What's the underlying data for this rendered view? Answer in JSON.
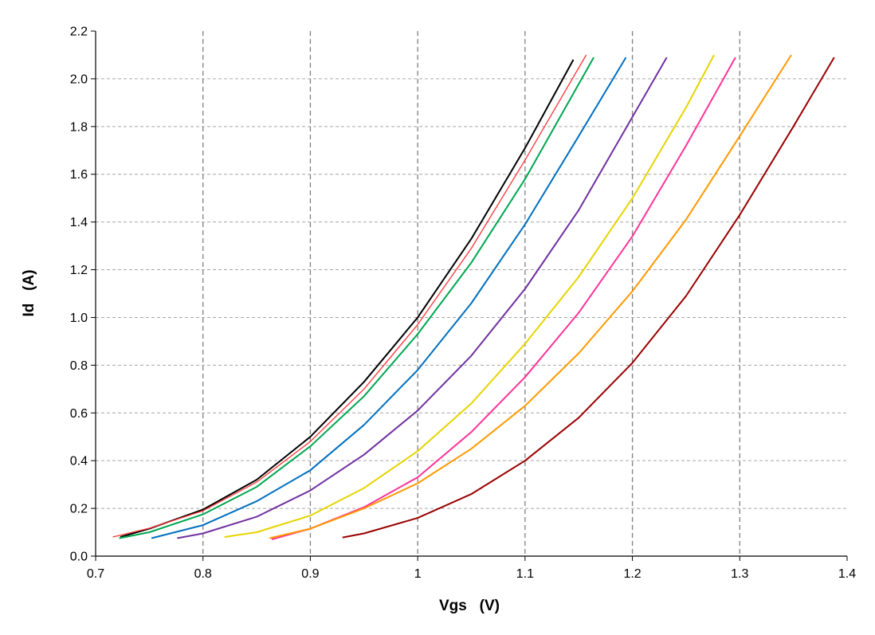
{
  "chart_data": {
    "type": "line",
    "title": "",
    "xlabel": "Vgs   (V)",
    "ylabel": "Id   (A)",
    "xlim": [
      0.7,
      1.4
    ],
    "ylim": [
      0.0,
      2.2
    ],
    "x_ticks": [
      0.7,
      0.8,
      0.9,
      1.0,
      1.1,
      1.2,
      1.3,
      1.4
    ],
    "x_tick_labels": [
      "0.7",
      "0.8",
      "0.9",
      "1",
      "1.1",
      "1.2",
      "1.3",
      "1.4"
    ],
    "y_ticks": [
      0.0,
      0.2,
      0.4,
      0.6,
      0.8,
      1.0,
      1.2,
      1.4,
      1.6,
      1.8,
      2.0,
      2.2
    ],
    "y_tick_labels": [
      "0.0",
      "0.2",
      "0.4",
      "0.6",
      "0.8",
      "1.0",
      "1.2",
      "1.4",
      "1.6",
      "1.8",
      "2.0",
      "2.2"
    ],
    "vertical_grid": "dashed, major x ticks 0.8–1.3",
    "horizontal_grid": "dashed, major y ticks",
    "legend": "none",
    "series": [
      {
        "color": "#000000",
        "x": [
          0.723,
          0.75,
          0.8,
          0.85,
          0.9,
          0.95,
          1.0,
          1.05,
          1.1,
          1.145
        ],
        "y": [
          0.08,
          0.115,
          0.195,
          0.32,
          0.5,
          0.73,
          1.0,
          1.33,
          1.71,
          2.08
        ]
      },
      {
        "color": "#ff3333",
        "x": [
          0.716,
          0.75,
          0.8,
          0.85,
          0.9,
          0.95,
          1.0,
          1.05,
          1.1,
          1.157
        ],
        "y": [
          0.08,
          0.117,
          0.19,
          0.31,
          0.48,
          0.7,
          0.97,
          1.29,
          1.66,
          2.1
        ]
      },
      {
        "color": "#00a650",
        "x": [
          0.722,
          0.75,
          0.8,
          0.85,
          0.9,
          0.95,
          1.0,
          1.05,
          1.1,
          1.164
        ],
        "y": [
          0.075,
          0.1,
          0.175,
          0.29,
          0.46,
          0.67,
          0.93,
          1.23,
          1.58,
          2.09
        ]
      },
      {
        "color": "#0070c0",
        "x": [
          0.752,
          0.8,
          0.85,
          0.9,
          0.95,
          1.0,
          1.05,
          1.1,
          1.15,
          1.194
        ],
        "y": [
          0.075,
          0.13,
          0.23,
          0.36,
          0.55,
          0.78,
          1.06,
          1.39,
          1.76,
          2.09
        ]
      },
      {
        "color": "#7030a0",
        "x": [
          0.776,
          0.8,
          0.85,
          0.9,
          0.95,
          1.0,
          1.05,
          1.1,
          1.15,
          1.2,
          1.232
        ],
        "y": [
          0.075,
          0.095,
          0.165,
          0.275,
          0.425,
          0.61,
          0.84,
          1.12,
          1.45,
          1.84,
          2.09
        ]
      },
      {
        "color": "#e6d400",
        "x": [
          0.82,
          0.85,
          0.9,
          0.95,
          1.0,
          1.05,
          1.1,
          1.15,
          1.2,
          1.25,
          1.276
        ],
        "y": [
          0.08,
          0.1,
          0.17,
          0.285,
          0.44,
          0.64,
          0.89,
          1.17,
          1.5,
          1.88,
          2.1
        ]
      },
      {
        "color": "#ff3399",
        "x": [
          0.864,
          0.9,
          0.95,
          1.0,
          1.05,
          1.1,
          1.15,
          1.2,
          1.25,
          1.296
        ],
        "y": [
          0.07,
          0.115,
          0.205,
          0.33,
          0.52,
          0.75,
          1.02,
          1.34,
          1.72,
          2.09
        ]
      },
      {
        "color": "#ff9900",
        "x": [
          0.862,
          0.9,
          0.95,
          1.0,
          1.05,
          1.1,
          1.15,
          1.2,
          1.25,
          1.3,
          1.348
        ],
        "y": [
          0.075,
          0.115,
          0.2,
          0.305,
          0.45,
          0.63,
          0.85,
          1.11,
          1.41,
          1.76,
          2.1
        ]
      },
      {
        "color": "#990000",
        "x": [
          0.93,
          0.95,
          1.0,
          1.05,
          1.1,
          1.15,
          1.2,
          1.25,
          1.3,
          1.35,
          1.388
        ],
        "y": [
          0.078,
          0.095,
          0.16,
          0.26,
          0.4,
          0.58,
          0.81,
          1.09,
          1.43,
          1.8,
          2.09
        ]
      }
    ]
  }
}
